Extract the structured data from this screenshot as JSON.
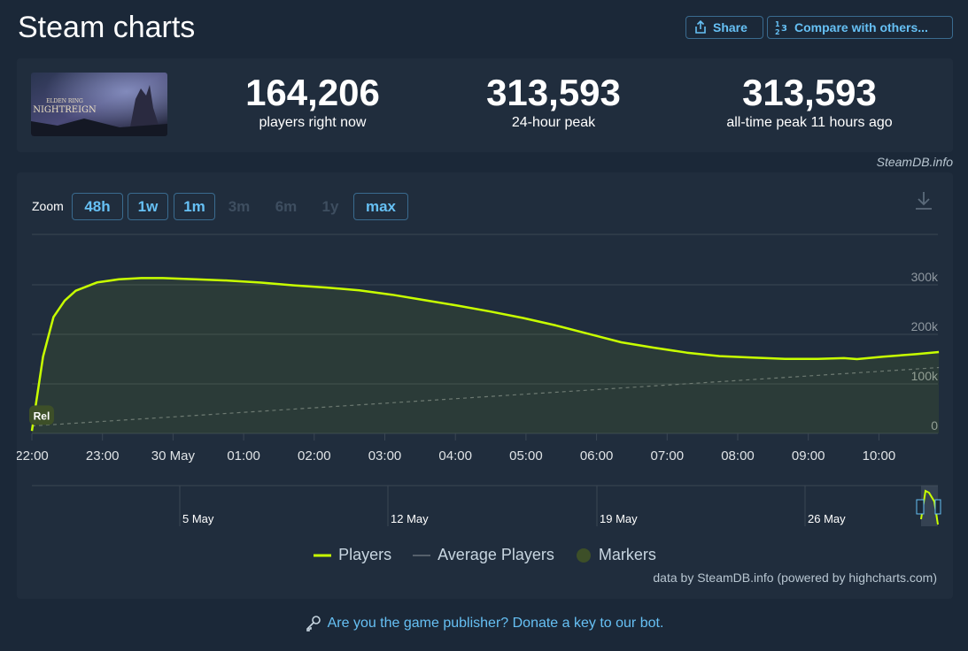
{
  "header": {
    "title": "Steam charts",
    "share_label": "Share",
    "compare_label": "Compare with others..."
  },
  "game": {
    "thumb_line1": "ELDEN RING",
    "thumb_line2": "NIGHTREIGN"
  },
  "stats": [
    {
      "value": "164,206",
      "label": "players right now"
    },
    {
      "value": "313,593",
      "label": "24-hour peak"
    },
    {
      "value": "313,593",
      "label": "all-time peak 11 hours ago"
    }
  ],
  "credit_top": "SteamDB.info",
  "zoom": {
    "label": "Zoom",
    "buttons": [
      {
        "label": "48h",
        "enabled": true
      },
      {
        "label": "1w",
        "enabled": true
      },
      {
        "label": "1m",
        "enabled": true
      },
      {
        "label": "3m",
        "enabled": false
      },
      {
        "label": "6m",
        "enabled": false
      },
      {
        "label": "1y",
        "enabled": false
      },
      {
        "label": "max",
        "enabled": true
      }
    ]
  },
  "chart_data": {
    "type": "line",
    "x_unit": "hours from 22:00 (29 May)",
    "xticks": [
      "22:00",
      "23:00",
      "30 May",
      "01:00",
      "02:00",
      "03:00",
      "04:00",
      "05:00",
      "06:00",
      "07:00",
      "08:00",
      "09:00",
      "10:00"
    ],
    "yticks": [
      "0",
      "100k",
      "200k",
      "300k"
    ],
    "ylim": [
      0,
      300000
    ],
    "series": [
      {
        "name": "Players",
        "color": "#c8ff00",
        "x": [
          0,
          0.17,
          0.33,
          0.5,
          0.67,
          1.0,
          1.33,
          1.67,
          2.0,
          2.5,
          3.0,
          3.5,
          4.0,
          4.5,
          5.0,
          5.5,
          6.0,
          6.5,
          7.0,
          7.5,
          8.0,
          8.5,
          9.0,
          9.5,
          10.0,
          10.5,
          11.0,
          11.5,
          12.0,
          12.4,
          12.6,
          13.0,
          13.5,
          13.85
        ],
        "y": [
          5000,
          155000,
          235000,
          268000,
          288000,
          305000,
          311000,
          313500,
          313593,
          311000,
          308500,
          304500,
          299000,
          294500,
          289000,
          280000,
          269000,
          258000,
          246000,
          233000,
          218000,
          201000,
          184000,
          173000,
          163000,
          156000,
          153000,
          150500,
          150500,
          152000,
          150000,
          155000,
          160000,
          164206
        ]
      },
      {
        "name": "Average Players",
        "color": "#67707b",
        "x": [
          0,
          13.85
        ],
        "y": [
          15000,
          133000
        ]
      }
    ],
    "markers": [
      {
        "x": 0.15,
        "label": "Rel"
      }
    ],
    "navigator": {
      "labels": [
        "5 May",
        "12 May",
        "19 May",
        "26 May"
      ]
    },
    "legend": [
      "Players",
      "Average Players",
      "Markers"
    ],
    "legend_position": "bottom-center",
    "grid": true
  },
  "credit_bottom": "data by SteamDB.info (powered by highcharts.com)",
  "publisher_text": "Are you the game publisher? Donate a key to our bot."
}
